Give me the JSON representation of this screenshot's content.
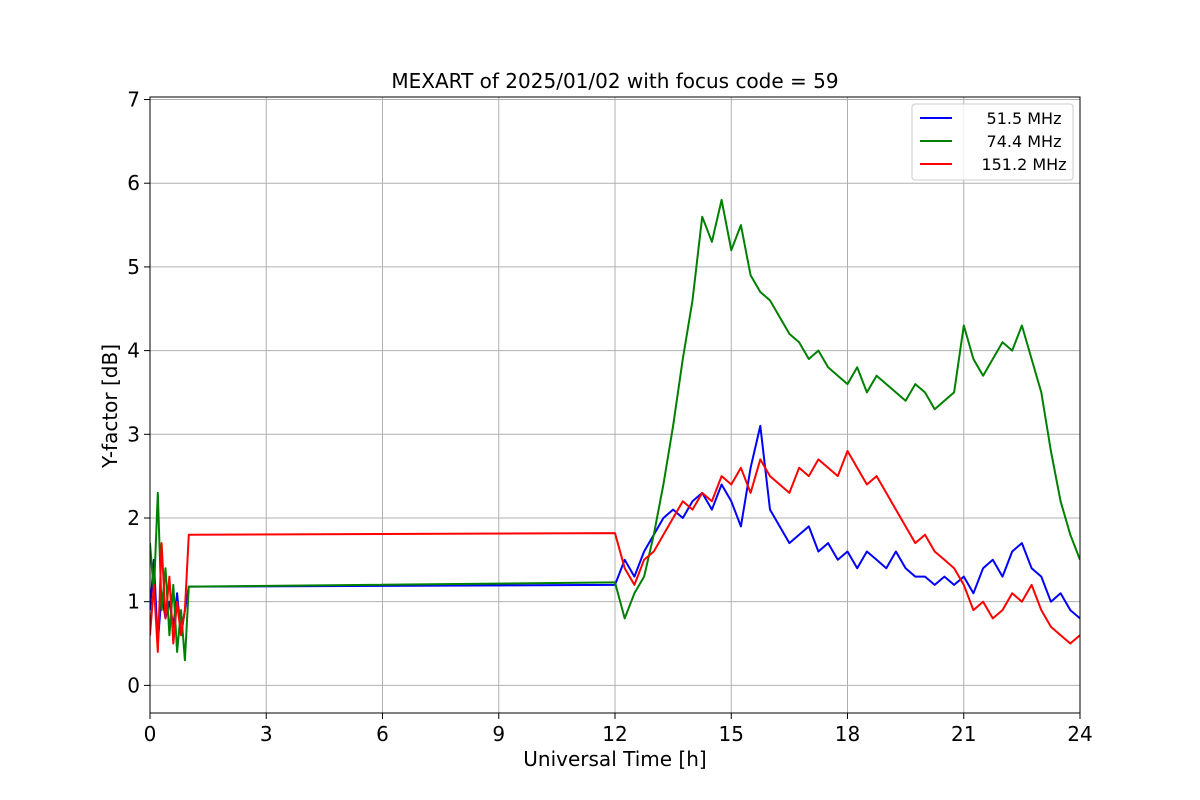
{
  "chart_data": {
    "type": "line",
    "title": "MEXART of 2025/01/02 with focus code = 59",
    "xlabel": "Universal Time [h]",
    "ylabel": "Y-factor [dB]",
    "xlim": [
      0,
      24
    ],
    "ylim": [
      -0.33,
      7.03
    ],
    "xticks": [
      0,
      3,
      6,
      9,
      12,
      15,
      18,
      21,
      24
    ],
    "yticks": [
      0,
      1,
      2,
      3,
      4,
      5,
      6,
      7
    ],
    "grid": true,
    "legend_position": "top-right",
    "series": [
      {
        "name": "51.5 MHz",
        "color": "#0000ff",
        "x": [
          0,
          0.1,
          0.2,
          0.3,
          0.4,
          0.5,
          0.6,
          0.7,
          0.8,
          0.9,
          1.0,
          12.0,
          12.25,
          12.5,
          12.75,
          13.0,
          13.25,
          13.5,
          13.75,
          14.0,
          14.25,
          14.5,
          14.75,
          15.0,
          15.25,
          15.5,
          15.75,
          16.0,
          16.25,
          16.5,
          16.75,
          17.0,
          17.25,
          17.5,
          17.75,
          18.0,
          18.25,
          18.5,
          18.75,
          19.0,
          19.25,
          19.5,
          19.75,
          20.0,
          20.25,
          20.5,
          20.75,
          21.0,
          21.25,
          21.5,
          21.75,
          22.0,
          22.25,
          22.5,
          22.75,
          23.0,
          23.25,
          23.5,
          23.75,
          24.0
        ],
        "y": [
          0.9,
          1.5,
          0.5,
          1.1,
          0.8,
          1.0,
          0.7,
          1.1,
          0.6,
          0.9,
          1.18,
          1.2,
          1.5,
          1.3,
          1.6,
          1.8,
          2.0,
          2.1,
          2.0,
          2.2,
          2.3,
          2.1,
          2.4,
          2.2,
          1.9,
          2.6,
          3.1,
          2.1,
          1.9,
          1.7,
          1.8,
          1.9,
          1.6,
          1.7,
          1.5,
          1.6,
          1.4,
          1.6,
          1.5,
          1.4,
          1.6,
          1.4,
          1.3,
          1.3,
          1.2,
          1.3,
          1.2,
          1.3,
          1.1,
          1.4,
          1.5,
          1.3,
          1.6,
          1.7,
          1.4,
          1.3,
          1.0,
          1.1,
          0.9,
          0.8
        ]
      },
      {
        "name": "74.4 MHz",
        "color": "#008000",
        "x": [
          0,
          0.1,
          0.2,
          0.3,
          0.4,
          0.5,
          0.6,
          0.7,
          0.8,
          0.9,
          1.0,
          12.0,
          12.25,
          12.5,
          12.75,
          13.0,
          13.25,
          13.5,
          13.75,
          14.0,
          14.25,
          14.5,
          14.75,
          15.0,
          15.25,
          15.5,
          15.75,
          16.0,
          16.25,
          16.5,
          16.75,
          17.0,
          17.25,
          17.5,
          17.75,
          18.0,
          18.25,
          18.5,
          18.75,
          19.0,
          19.25,
          19.5,
          19.75,
          20.0,
          20.25,
          20.5,
          20.75,
          21.0,
          21.25,
          21.5,
          21.75,
          22.0,
          22.25,
          22.5,
          22.75,
          23.0,
          23.25,
          23.5,
          23.75,
          24.0
        ],
        "y": [
          1.7,
          1.1,
          2.3,
          0.9,
          1.4,
          0.6,
          1.2,
          0.4,
          0.9,
          0.3,
          1.18,
          1.23,
          0.8,
          1.1,
          1.3,
          1.8,
          2.4,
          3.1,
          3.9,
          4.6,
          5.6,
          5.3,
          5.8,
          5.2,
          5.5,
          4.9,
          4.7,
          4.6,
          4.4,
          4.2,
          4.1,
          3.9,
          4.0,
          3.8,
          3.7,
          3.6,
          3.8,
          3.5,
          3.7,
          3.6,
          3.5,
          3.4,
          3.6,
          3.5,
          3.3,
          3.4,
          3.5,
          4.3,
          3.9,
          3.7,
          3.9,
          4.1,
          4.0,
          4.3,
          3.9,
          3.5,
          2.8,
          2.2,
          1.8,
          1.5
        ]
      },
      {
        "name": "151.2 MHz",
        "color": "#ff0000",
        "x": [
          0,
          0.1,
          0.2,
          0.3,
          0.4,
          0.5,
          0.6,
          0.7,
          0.8,
          0.9,
          1.0,
          12.0,
          12.25,
          12.5,
          12.75,
          13.0,
          13.25,
          13.5,
          13.75,
          14.0,
          14.25,
          14.5,
          14.75,
          15.0,
          15.25,
          15.5,
          15.75,
          16.0,
          16.25,
          16.5,
          16.75,
          17.0,
          17.25,
          17.5,
          17.75,
          18.0,
          18.25,
          18.5,
          18.75,
          19.0,
          19.25,
          19.5,
          19.75,
          20.0,
          20.25,
          20.5,
          20.75,
          21.0,
          21.25,
          21.5,
          21.75,
          22.0,
          22.25,
          22.5,
          22.75,
          23.0,
          23.25,
          23.5,
          23.75,
          24.0
        ],
        "y": [
          0.6,
          1.2,
          0.4,
          1.7,
          0.8,
          1.3,
          0.5,
          1.0,
          0.6,
          0.9,
          1.8,
          1.82,
          1.4,
          1.2,
          1.5,
          1.6,
          1.8,
          2.0,
          2.2,
          2.1,
          2.3,
          2.2,
          2.5,
          2.4,
          2.6,
          2.3,
          2.7,
          2.5,
          2.4,
          2.3,
          2.6,
          2.5,
          2.7,
          2.6,
          2.5,
          2.8,
          2.6,
          2.4,
          2.5,
          2.3,
          2.1,
          1.9,
          1.7,
          1.8,
          1.6,
          1.5,
          1.4,
          1.2,
          0.9,
          1.0,
          0.8,
          0.9,
          1.1,
          1.0,
          1.2,
          0.9,
          0.7,
          0.6,
          0.5,
          0.6
        ]
      }
    ]
  }
}
